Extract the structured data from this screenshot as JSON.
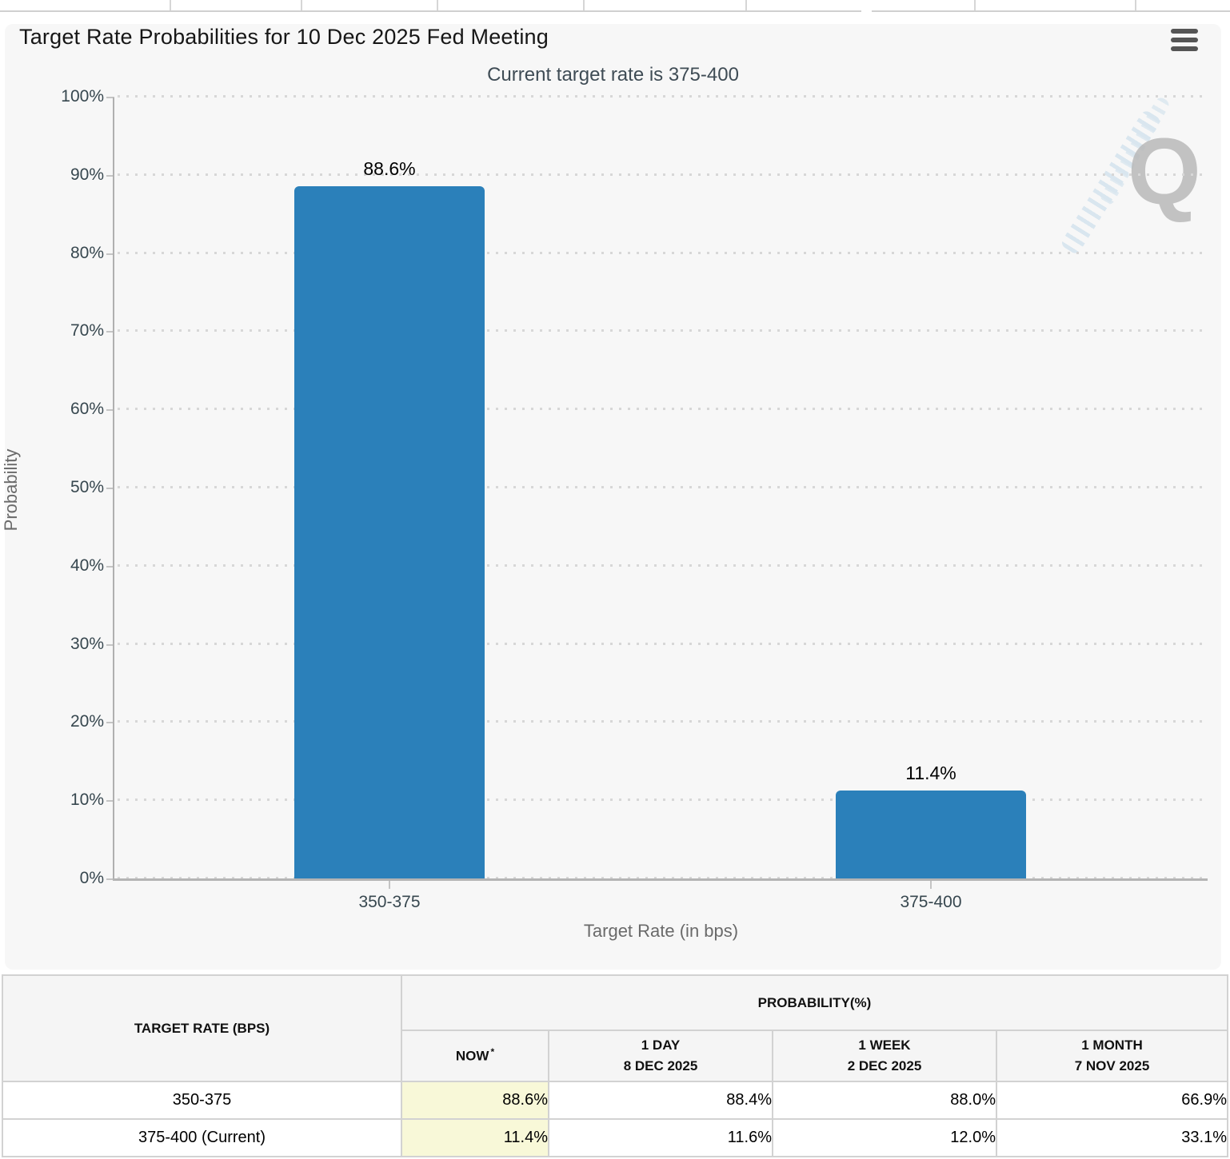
{
  "chart": {
    "title": "Target Rate Probabilities for 10 Dec 2025 Fed Meeting",
    "subtitle": "Current target rate is 375-400",
    "watermark_letter": "Q"
  },
  "chart_data": {
    "type": "bar",
    "title": "Target Rate Probabilities for 10 Dec 2025 Fed Meeting",
    "subtitle": "Current target rate is 375-400",
    "categories": [
      "350-375",
      "375-400"
    ],
    "values": [
      88.6,
      11.4
    ],
    "data_labels": [
      "88.6%",
      "11.4%"
    ],
    "xlabel": "Target Rate (in bps)",
    "ylabel": "Probability",
    "ylim": [
      0,
      100
    ],
    "ytick_labels": [
      "0%",
      "10%",
      "20%",
      "30%",
      "40%",
      "50%",
      "60%",
      "70%",
      "80%",
      "90%",
      "100%"
    ],
    "grid": "dotted-horizontal",
    "legend": "none",
    "bar_color": "#2b80ba"
  },
  "table": {
    "corner_header": "TARGET RATE (BPS)",
    "group_header": "PROBABILITY(%)",
    "col_headers": [
      {
        "line1": "NOW",
        "asterisk": "*",
        "line2": ""
      },
      {
        "line1": "1 DAY",
        "line2": "8 DEC 2025"
      },
      {
        "line1": "1 WEEK",
        "line2": "2 DEC 2025"
      },
      {
        "line1": "1 MONTH",
        "line2": "7 NOV 2025"
      }
    ],
    "rows": [
      {
        "rate": "350-375",
        "values": [
          "88.6%",
          "88.4%",
          "88.0%",
          "66.9%"
        ]
      },
      {
        "rate": "375-400 (Current)",
        "values": [
          "11.4%",
          "11.6%",
          "12.0%",
          "33.1%"
        ]
      }
    ]
  }
}
